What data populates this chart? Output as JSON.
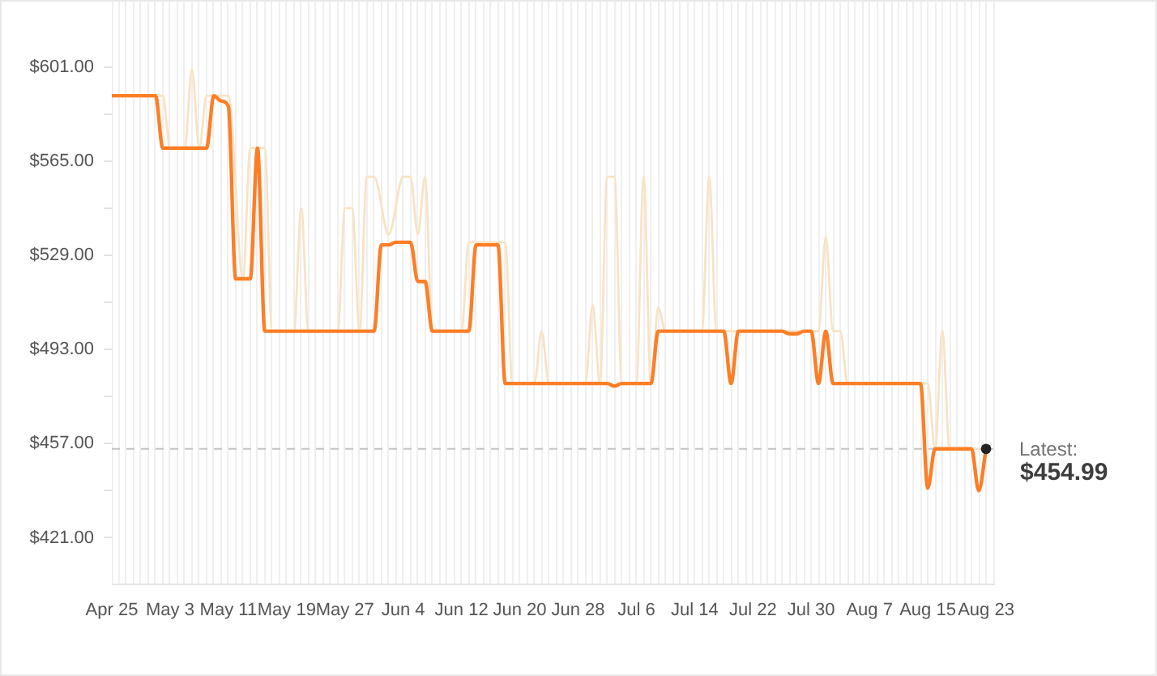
{
  "chart_data": {
    "type": "line",
    "series": [
      {
        "color": "#fd7e26",
        "x": [
          "--04-25",
          "--05-01",
          "--05-02",
          "--05-08",
          "--05-09",
          "--05-10",
          "--05-11",
          "--05-12",
          "--05-14",
          "--05-15",
          "--05-16",
          "--05-31",
          "--06-01",
          "--06-02",
          "--06-03",
          "--06-05",
          "--06-06",
          "--06-07",
          "--06-08",
          "--06-13",
          "--06-14",
          "--06-17",
          "--06-18",
          "--07-02",
          "--07-03",
          "--07-04",
          "--07-08",
          "--07-09",
          "--07-18",
          "--07-19",
          "--07-20",
          "--07-26",
          "--07-27",
          "--07-28",
          "--07-29",
          "--07-30",
          "--07-31",
          "--08-01",
          "--08-02",
          "--08-14",
          "--08-15",
          "--08-16",
          "--08-21",
          "--08-22",
          "--08-23"
        ],
        "values": [
          590,
          590,
          570,
          570,
          590,
          588,
          586,
          520,
          520,
          570,
          500,
          500,
          533,
          533,
          534,
          534,
          519,
          519,
          500,
          500,
          533,
          533,
          480,
          480,
          479,
          480,
          480,
          500,
          500,
          480,
          500,
          500,
          499,
          499,
          500,
          500,
          480,
          500,
          480,
          480,
          440,
          455,
          455,
          439,
          454.99
        ]
      },
      {
        "color": "#f8e3c3",
        "x": [
          "--04-25",
          "--05-02",
          "--05-03",
          "--05-05",
          "--05-06",
          "--05-07",
          "--05-08",
          "--05-11",
          "--05-13",
          "--05-14",
          "--05-16",
          "--05-17",
          "--05-20",
          "--05-21",
          "--05-22",
          "--05-26",
          "--05-27",
          "--05-28",
          "--05-29",
          "--05-30",
          "--05-31",
          "--06-02",
          "--06-04",
          "--06-05",
          "--06-06",
          "--06-07",
          "--06-08",
          "--06-12",
          "--06-13",
          "--06-18",
          "--06-19",
          "--06-22",
          "--06-23",
          "--06-24",
          "--06-29",
          "--06-30",
          "--07-01",
          "--07-02",
          "--07-03",
          "--07-04",
          "--07-06",
          "--07-07",
          "--07-08",
          "--07-09",
          "--07-10",
          "--07-15",
          "--07-16",
          "--07-17",
          "--07-31",
          "--08-01",
          "--08-02",
          "--08-03",
          "--08-04",
          "--08-15",
          "--08-16",
          "--08-17",
          "--08-18",
          "--08-23"
        ],
        "values": [
          590,
          590,
          570,
          570,
          600,
          570,
          590,
          590,
          520,
          570,
          570,
          500,
          500,
          547,
          500,
          500,
          547,
          547,
          500,
          559,
          559,
          537,
          559,
          559,
          537,
          559,
          500,
          500,
          534,
          534,
          480,
          480,
          500,
          480,
          480,
          510,
          480,
          559,
          559,
          480,
          480,
          559,
          480,
          509,
          500,
          500,
          559,
          500,
          500,
          536,
          500,
          500,
          480,
          480,
          455,
          500,
          455,
          455
        ]
      },
      {
        "type": "scatter",
        "color": "#222222",
        "marker": "circle",
        "x": [
          "--08-23"
        ],
        "values": [
          454.99
        ]
      }
    ],
    "xlim": [
      "--04-25",
      "--08-24"
    ],
    "xticks": [
      {
        "value": "--04-25",
        "label": "Apr 25"
      },
      {
        "value": "--04-26",
        "label": null
      },
      {
        "value": "--04-27",
        "label": null
      },
      {
        "value": "--04-28",
        "label": null
      },
      {
        "value": "--04-29",
        "label": null
      },
      {
        "value": "--04-30",
        "label": null
      },
      {
        "value": "--05-01",
        "label": null
      },
      {
        "value": "--05-02",
        "label": null
      },
      {
        "value": "--05-03",
        "label": "May 3"
      },
      {
        "value": "--05-04",
        "label": null
      },
      {
        "value": "--05-05",
        "label": null
      },
      {
        "value": "--05-06",
        "label": null
      },
      {
        "value": "--05-07",
        "label": null
      },
      {
        "value": "--05-08",
        "label": null
      },
      {
        "value": "--05-09",
        "label": null
      },
      {
        "value": "--05-10",
        "label": null
      },
      {
        "value": "--05-11",
        "label": "May 11"
      },
      {
        "value": "--05-12",
        "label": null
      },
      {
        "value": "--05-13",
        "label": null
      },
      {
        "value": "--05-14",
        "label": null
      },
      {
        "value": "--05-15",
        "label": null
      },
      {
        "value": "--05-16",
        "label": null
      },
      {
        "value": "--05-17",
        "label": null
      },
      {
        "value": "--05-18",
        "label": null
      },
      {
        "value": "--05-19",
        "label": "May 19"
      },
      {
        "value": "--05-20",
        "label": null
      },
      {
        "value": "--05-21",
        "label": null
      },
      {
        "value": "--05-22",
        "label": null
      },
      {
        "value": "--05-23",
        "label": null
      },
      {
        "value": "--05-24",
        "label": null
      },
      {
        "value": "--05-25",
        "label": null
      },
      {
        "value": "--05-26",
        "label": null
      },
      {
        "value": "--05-27",
        "label": "May 27"
      },
      {
        "value": "--05-28",
        "label": null
      },
      {
        "value": "--05-29",
        "label": null
      },
      {
        "value": "--05-30",
        "label": null
      },
      {
        "value": "--05-31",
        "label": null
      },
      {
        "value": "--06-01",
        "label": null
      },
      {
        "value": "--06-02",
        "label": null
      },
      {
        "value": "--06-03",
        "label": null
      },
      {
        "value": "--06-04",
        "label": "Jun 4"
      },
      {
        "value": "--06-05",
        "label": null
      },
      {
        "value": "--06-06",
        "label": null
      },
      {
        "value": "--06-07",
        "label": null
      },
      {
        "value": "--06-08",
        "label": null
      },
      {
        "value": "--06-09",
        "label": null
      },
      {
        "value": "--06-10",
        "label": null
      },
      {
        "value": "--06-11",
        "label": null
      },
      {
        "value": "--06-12",
        "label": "Jun 12"
      },
      {
        "value": "--06-13",
        "label": null
      },
      {
        "value": "--06-14",
        "label": null
      },
      {
        "value": "--06-15",
        "label": null
      },
      {
        "value": "--06-16",
        "label": null
      },
      {
        "value": "--06-17",
        "label": null
      },
      {
        "value": "--06-18",
        "label": null
      },
      {
        "value": "--06-19",
        "label": null
      },
      {
        "value": "--06-20",
        "label": "Jun 20"
      },
      {
        "value": "--06-21",
        "label": null
      },
      {
        "value": "--06-22",
        "label": null
      },
      {
        "value": "--06-23",
        "label": null
      },
      {
        "value": "--06-24",
        "label": null
      },
      {
        "value": "--06-25",
        "label": null
      },
      {
        "value": "--06-26",
        "label": null
      },
      {
        "value": "--06-27",
        "label": null
      },
      {
        "value": "--06-28",
        "label": "Jun 28"
      },
      {
        "value": "--06-29",
        "label": null
      },
      {
        "value": "--06-30",
        "label": null
      },
      {
        "value": "--07-01",
        "label": null
      },
      {
        "value": "--07-02",
        "label": null
      },
      {
        "value": "--07-03",
        "label": null
      },
      {
        "value": "--07-04",
        "label": null
      },
      {
        "value": "--07-05",
        "label": null
      },
      {
        "value": "--07-06",
        "label": "Jul 6"
      },
      {
        "value": "--07-07",
        "label": null
      },
      {
        "value": "--07-08",
        "label": null
      },
      {
        "value": "--07-09",
        "label": null
      },
      {
        "value": "--07-10",
        "label": null
      },
      {
        "value": "--07-11",
        "label": null
      },
      {
        "value": "--07-12",
        "label": null
      },
      {
        "value": "--07-13",
        "label": null
      },
      {
        "value": "--07-14",
        "label": "Jul 14"
      },
      {
        "value": "--07-15",
        "label": null
      },
      {
        "value": "--07-16",
        "label": null
      },
      {
        "value": "--07-17",
        "label": null
      },
      {
        "value": "--07-18",
        "label": null
      },
      {
        "value": "--07-19",
        "label": null
      },
      {
        "value": "--07-20",
        "label": null
      },
      {
        "value": "--07-21",
        "label": null
      },
      {
        "value": "--07-22",
        "label": "Jul 22"
      },
      {
        "value": "--07-23",
        "label": null
      },
      {
        "value": "--07-24",
        "label": null
      },
      {
        "value": "--07-25",
        "label": null
      },
      {
        "value": "--07-26",
        "label": null
      },
      {
        "value": "--07-27",
        "label": null
      },
      {
        "value": "--07-28",
        "label": null
      },
      {
        "value": "--07-29",
        "label": null
      },
      {
        "value": "--07-30",
        "label": "Jul 30"
      },
      {
        "value": "--07-31",
        "label": null
      },
      {
        "value": "--08-01",
        "label": null
      },
      {
        "value": "--08-02",
        "label": null
      },
      {
        "value": "--08-03",
        "label": null
      },
      {
        "value": "--08-04",
        "label": null
      },
      {
        "value": "--08-05",
        "label": null
      },
      {
        "value": "--08-06",
        "label": null
      },
      {
        "value": "--08-07",
        "label": "Aug 7"
      },
      {
        "value": "--08-08",
        "label": null
      },
      {
        "value": "--08-09",
        "label": null
      },
      {
        "value": "--08-10",
        "label": null
      },
      {
        "value": "--08-11",
        "label": null
      },
      {
        "value": "--08-12",
        "label": null
      },
      {
        "value": "--08-13",
        "label": null
      },
      {
        "value": "--08-14",
        "label": null
      },
      {
        "value": "--08-15",
        "label": "Aug 15"
      },
      {
        "value": "--08-16",
        "label": null
      },
      {
        "value": "--08-17",
        "label": null
      },
      {
        "value": "--08-18",
        "label": null
      },
      {
        "value": "--08-19",
        "label": null
      },
      {
        "value": "--08-20",
        "label": null
      },
      {
        "value": "--08-21",
        "label": null
      },
      {
        "value": "--08-22",
        "label": null
      },
      {
        "value": "--08-23",
        "label": "Aug 23"
      },
      {
        "value": "--08-24",
        "label": null
      }
    ],
    "ylim": [
      403.5,
      626
    ],
    "yticks": [
      {
        "value": 421,
        "label": "$421.00"
      },
      {
        "value": 439,
        "label": null
      },
      {
        "value": 457,
        "label": "$457.00"
      },
      {
        "value": 475,
        "label": null
      },
      {
        "value": 493,
        "label": "$493.00"
      },
      {
        "value": 511,
        "label": null
      },
      {
        "value": 529,
        "label": "$529.00"
      },
      {
        "value": 547,
        "label": null
      },
      {
        "value": 565,
        "label": "$565.00"
      },
      {
        "value": 583,
        "label": null
      },
      {
        "value": 601,
        "label": "$601.00"
      }
    ],
    "grid": "x",
    "ref_lines": [
      {
        "axis": "y",
        "value": 454.99,
        "label": "Latest:",
        "color": "#c4c4c4",
        "line_style": "dashed"
      }
    ],
    "annotations": [
      {
        "text": "$454.99",
        "x": "--08-23",
        "y": 454.99
      }
    ]
  }
}
